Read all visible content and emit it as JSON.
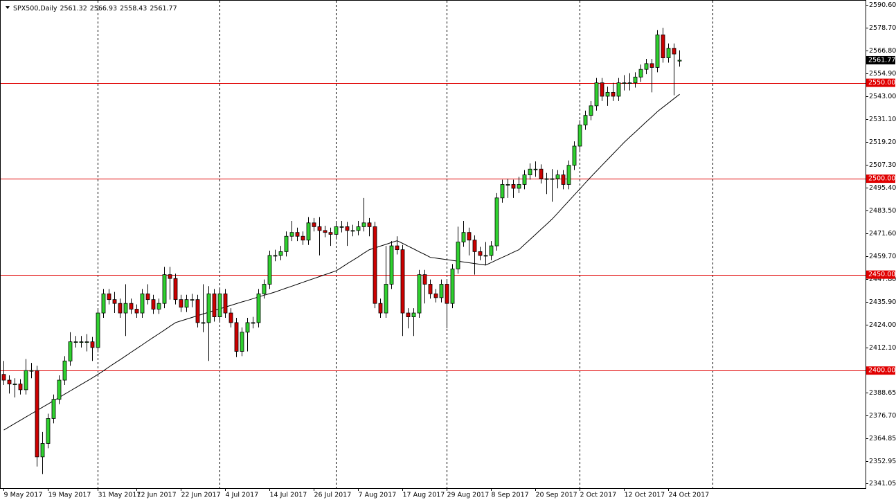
{
  "chart_data": {
    "type": "candlestick",
    "title": "SPX500,Daily",
    "up_color": "#2fd12f",
    "down_color": "#cc0000",
    "ma_color": "#000000",
    "level_color": "#e00000",
    "ylim": [
      2338.7,
      2592.8
    ],
    "yticks": [
      {
        "value": 2590.6,
        "label": "2590.60"
      },
      {
        "value": 2578.7,
        "label": "2578.70"
      },
      {
        "value": 2566.8,
        "label": "2566.80"
      },
      {
        "value": 2554.9,
        "label": "2554.90"
      },
      {
        "value": 2543.0,
        "label": "2543.00"
      },
      {
        "value": 2531.1,
        "label": "2531.10"
      },
      {
        "value": 2519.2,
        "label": "2519.20"
      },
      {
        "value": 2507.3,
        "label": "2507.30"
      },
      {
        "value": 2495.4,
        "label": "2495.40"
      },
      {
        "value": 2483.5,
        "label": "2483.50"
      },
      {
        "value": 2471.6,
        "label": "2471.60"
      },
      {
        "value": 2459.7,
        "label": "2459.70"
      },
      {
        "value": 2447.8,
        "label": "2447.80"
      },
      {
        "value": 2435.9,
        "label": "2435.90"
      },
      {
        "value": 2424.0,
        "label": "2424.00"
      },
      {
        "value": 2412.1,
        "label": "2412.10"
      },
      {
        "value": 2388.65,
        "label": "2388.65"
      },
      {
        "value": 2376.7,
        "label": "2376.70"
      },
      {
        "value": 2364.85,
        "label": "2364.85"
      },
      {
        "value": 2352.95,
        "label": "2352.95"
      },
      {
        "value": 2341.05,
        "label": "2341.05"
      }
    ],
    "levels": [
      {
        "value": 2550,
        "label": "2550.00"
      },
      {
        "value": 2500,
        "label": "2500.00"
      },
      {
        "value": 2450,
        "label": "2450.00"
      },
      {
        "value": 2400,
        "label": "2400.00"
      }
    ],
    "categories": [
      "9 May 2017",
      null,
      null,
      null,
      null,
      null,
      null,
      null,
      "19 May 2017",
      null,
      null,
      null,
      null,
      null,
      null,
      null,
      null,
      "31 May 2017",
      null,
      null,
      null,
      null,
      null,
      null,
      "12 Jun 2017",
      null,
      null,
      null,
      null,
      null,
      null,
      null,
      "22 Jun 2017",
      null,
      null,
      null,
      null,
      null,
      null,
      null,
      "4 Jul 2017",
      null,
      null,
      null,
      null,
      null,
      null,
      null,
      "14 Jul 2017",
      null,
      null,
      null,
      null,
      null,
      null,
      null,
      "26 Jul 2017",
      null,
      null,
      null,
      null,
      null,
      null,
      null,
      "7 Aug 2017",
      null,
      null,
      null,
      null,
      null,
      null,
      null,
      "17 Aug 2017",
      null,
      null,
      null,
      null,
      null,
      null,
      null,
      "29 Aug 2017",
      null,
      null,
      null,
      null,
      null,
      null,
      null,
      "8 Sep 2017",
      null,
      null,
      null,
      null,
      null,
      null,
      null,
      "20 Sep 2017",
      null,
      null,
      null,
      null,
      null,
      null,
      null,
      "2 Oct 2017",
      null,
      null,
      null,
      null,
      null,
      null,
      null,
      "12 Oct 2017",
      null,
      null,
      null,
      null,
      null,
      null,
      null,
      "24 Oct 2017",
      null,
      null
    ],
    "candles": [
      [
        2398,
        2405,
        2392.5,
        2395
      ],
      [
        2395,
        2397.5,
        2388,
        2393
      ],
      [
        2393,
        2396,
        2386,
        2393
      ],
      [
        2393,
        2395.5,
        2387.5,
        2390
      ],
      [
        2390,
        2406,
        2387.5,
        2400
      ],
      [
        2400,
        2404,
        2396,
        2400
      ],
      [
        2400,
        2402.5,
        2350,
        2355
      ],
      [
        2355,
        2368,
        2346,
        2362
      ],
      [
        2362,
        2377.5,
        2359.5,
        2375
      ],
      [
        2375,
        2387.5,
        2372.5,
        2385
      ],
      [
        2385,
        2397.5,
        2382.5,
        2395
      ],
      [
        2395,
        2407.5,
        2392.5,
        2405
      ],
      [
        2405,
        2420,
        2402.5,
        2415
      ],
      [
        2415,
        2418,
        2412,
        2415
      ],
      [
        2415,
        2418,
        2412,
        2415
      ],
      [
        2415,
        2419,
        2410,
        2415
      ],
      [
        2415,
        2417.5,
        2405,
        2412
      ],
      [
        2412,
        2432.5,
        2409.5,
        2430
      ],
      [
        2430,
        2442.5,
        2427.5,
        2440
      ],
      [
        2440,
        2442.5,
        2434.5,
        2437
      ],
      [
        2437,
        2441,
        2430,
        2435
      ],
      [
        2435,
        2437.5,
        2427.5,
        2430
      ],
      [
        2430,
        2445,
        2418,
        2435
      ],
      [
        2435,
        2437.5,
        2429.5,
        2432
      ],
      [
        2432,
        2434.5,
        2427.5,
        2430
      ],
      [
        2430,
        2442.5,
        2427.5,
        2440
      ],
      [
        2440,
        2445,
        2434.5,
        2437
      ],
      [
        2437,
        2439.5,
        2429.5,
        2432
      ],
      [
        2432,
        2437.5,
        2429.5,
        2435
      ],
      [
        2435,
        2454,
        2432.5,
        2450
      ],
      [
        2450,
        2454,
        2437,
        2448
      ],
      [
        2448,
        2450.5,
        2434.5,
        2437
      ],
      [
        2437,
        2439.5,
        2430.5,
        2433
      ],
      [
        2433,
        2439.5,
        2430.5,
        2437
      ],
      [
        2437,
        2440,
        2433,
        2437
      ],
      [
        2437,
        2439.5,
        2422.5,
        2425
      ],
      [
        2425,
        2445,
        2420,
        2425
      ],
      [
        2425,
        2444,
        2405,
        2440
      ],
      [
        2440,
        2442.5,
        2425.5,
        2428
      ],
      [
        2428,
        2442.5,
        2425.5,
        2440
      ],
      [
        2440,
        2442.5,
        2427.5,
        2430
      ],
      [
        2430,
        2432.5,
        2422.5,
        2425
      ],
      [
        2425,
        2427.5,
        2407,
        2410
      ],
      [
        2410,
        2422.5,
        2407.5,
        2420
      ],
      [
        2420,
        2427.5,
        2410,
        2425
      ],
      [
        2425,
        2428,
        2422,
        2425
      ],
      [
        2425,
        2442.5,
        2422.5,
        2440
      ],
      [
        2440,
        2447.5,
        2437.5,
        2445
      ],
      [
        2445,
        2462.5,
        2442.5,
        2460
      ],
      [
        2460,
        2463,
        2457,
        2460
      ],
      [
        2460,
        2465,
        2457.5,
        2462
      ],
      [
        2462,
        2472.5,
        2459.5,
        2470
      ],
      [
        2470,
        2478,
        2467.5,
        2472
      ],
      [
        2472,
        2474.5,
        2467.5,
        2470
      ],
      [
        2470,
        2472.5,
        2465.5,
        2468
      ],
      [
        2468,
        2480,
        2465.5,
        2477
      ],
      [
        2477,
        2479.5,
        2472.5,
        2475
      ],
      [
        2475,
        2480,
        2460,
        2473
      ],
      [
        2473,
        2475.5,
        2469.5,
        2472
      ],
      [
        2472,
        2474.5,
        2465,
        2471
      ],
      [
        2471,
        2477.5,
        2468.5,
        2475
      ],
      [
        2475,
        2478,
        2472,
        2475
      ],
      [
        2475,
        2477.5,
        2465,
        2473
      ],
      [
        2473,
        2476,
        2470,
        2473
      ],
      [
        2473,
        2478,
        2470.5,
        2475
      ],
      [
        2475,
        2490,
        2472.5,
        2477
      ],
      [
        2477,
        2479.5,
        2470,
        2475
      ],
      [
        2475,
        2477.5,
        2432.5,
        2435
      ],
      [
        2435,
        2437.5,
        2427.5,
        2430
      ],
      [
        2430,
        2465,
        2427.5,
        2445
      ],
      [
        2445,
        2467.5,
        2442.5,
        2465
      ],
      [
        2465,
        2470,
        2460.5,
        2463
      ],
      [
        2463,
        2465.5,
        2418,
        2430
      ],
      [
        2430,
        2432.5,
        2422,
        2428
      ],
      [
        2428,
        2432.5,
        2418,
        2430
      ],
      [
        2430,
        2452.5,
        2427.5,
        2450
      ],
      [
        2450,
        2452.5,
        2435,
        2445
      ],
      [
        2445,
        2447.5,
        2437.5,
        2440
      ],
      [
        2440,
        2442.5,
        2435.5,
        2438
      ],
      [
        2438,
        2447.5,
        2435.5,
        2445
      ],
      [
        2445,
        2447.5,
        2422,
        2435
      ],
      [
        2435,
        2455.5,
        2432.5,
        2453
      ],
      [
        2453,
        2475,
        2450.5,
        2467
      ],
      [
        2467,
        2478,
        2464.5,
        2472
      ],
      [
        2472,
        2474.5,
        2460,
        2468
      ],
      [
        2468,
        2470.5,
        2450,
        2462
      ],
      [
        2462,
        2464.5,
        2457.5,
        2460
      ],
      [
        2460,
        2467,
        2455,
        2460
      ],
      [
        2460,
        2467.5,
        2457.5,
        2465
      ],
      [
        2465,
        2492.5,
        2462.5,
        2490
      ],
      [
        2490,
        2499.5,
        2487.5,
        2497
      ],
      [
        2497,
        2500,
        2490,
        2497
      ],
      [
        2497,
        2499.5,
        2490,
        2495
      ],
      [
        2495,
        2501,
        2492.5,
        2497
      ],
      [
        2497,
        2504.5,
        2494.5,
        2502
      ],
      [
        2502,
        2508,
        2499.5,
        2505
      ],
      [
        2505,
        2509,
        2501,
        2505
      ],
      [
        2505,
        2507.5,
        2497.5,
        2500
      ],
      [
        2500,
        2503,
        2492,
        2500
      ],
      [
        2500,
        2505,
        2488,
        2500
      ],
      [
        2500,
        2504.5,
        2495,
        2502
      ],
      [
        2502,
        2504.5,
        2494.5,
        2497
      ],
      [
        2497,
        2509.5,
        2494.5,
        2507
      ],
      [
        2507,
        2519.5,
        2504.5,
        2517
      ],
      [
        2517,
        2530.5,
        2514.5,
        2528
      ],
      [
        2528,
        2535.5,
        2525.5,
        2533
      ],
      [
        2533,
        2540.5,
        2530.5,
        2538
      ],
      [
        2538,
        2552.5,
        2535.5,
        2550
      ],
      [
        2550,
        2552.5,
        2540.5,
        2543
      ],
      [
        2543,
        2548,
        2538,
        2545
      ],
      [
        2545,
        2550,
        2540.5,
        2543
      ],
      [
        2543,
        2552.5,
        2540.5,
        2550
      ],
      [
        2550,
        2554,
        2546,
        2550
      ],
      [
        2550,
        2555,
        2546,
        2550
      ],
      [
        2550,
        2555.5,
        2547.5,
        2553
      ],
      [
        2553,
        2559.5,
        2550.5,
        2557
      ],
      [
        2557,
        2562.5,
        2554.5,
        2560
      ],
      [
        2560,
        2562.5,
        2545,
        2558
      ],
      [
        2558,
        2577.5,
        2555.5,
        2575
      ],
      [
        2575,
        2578.7,
        2560.5,
        2563
      ],
      [
        2563,
        2570.5,
        2560.5,
        2568
      ],
      [
        2568,
        2570.5,
        2543.5,
        2565
      ],
      [
        2561.32,
        2566.93,
        2558.43,
        2561.77
      ]
    ],
    "ma": [
      2369,
      2370.7,
      2372.4,
      2374.1,
      2375.8,
      2377.5,
      2379.2,
      2380.9,
      2382.6,
      2384.3,
      2386,
      2387.7,
      2389.4,
      2391.1,
      2392.8,
      2394.5,
      2396.2,
      2398,
      2399.9,
      2401.9,
      2403.8,
      2405.7,
      2407.6,
      2409.6,
      2411.5,
      2413.4,
      2415.4,
      2417.3,
      2419.2,
      2421.1,
      2423.1,
      2425,
      2425.9,
      2426.8,
      2427.7,
      2428.6,
      2429.5,
      2430.4,
      2431.3,
      2432.2,
      2433.1,
      2434,
      2434.9,
      2435.8,
      2436.6,
      2437.5,
      2438.4,
      2439.3,
      2440.1,
      2441,
      2442,
      2443,
      2444,
      2445,
      2446,
      2447,
      2448,
      2449,
      2450,
      2451,
      2452,
      2453.8,
      2455.7,
      2457.5,
      2459.3,
      2461.2,
      2463,
      2463.9,
      2464.9,
      2465.8,
      2466.8,
      2467.7,
      2466.3,
      2464.8,
      2463.4,
      2461.9,
      2460.5,
      2459,
      2458.6,
      2458.2,
      2457.8,
      2457.4,
      2457,
      2456.6,
      2456.2,
      2455.8,
      2455.4,
      2455,
      2456.3,
      2457.7,
      2459,
      2460.3,
      2461.7,
      2463,
      2465.7,
      2468.3,
      2471,
      2473.7,
      2476.3,
      2479,
      2482.1,
      2485.3,
      2488.4,
      2491.6,
      2494.7,
      2497.9,
      2501,
      2504,
      2507,
      2510,
      2513,
      2516,
      2519,
      2521.7,
      2524.3,
      2527,
      2529.7,
      2532.3,
      2535,
      2537.3,
      2539.5,
      2541.8,
      2544
    ]
  }
}
